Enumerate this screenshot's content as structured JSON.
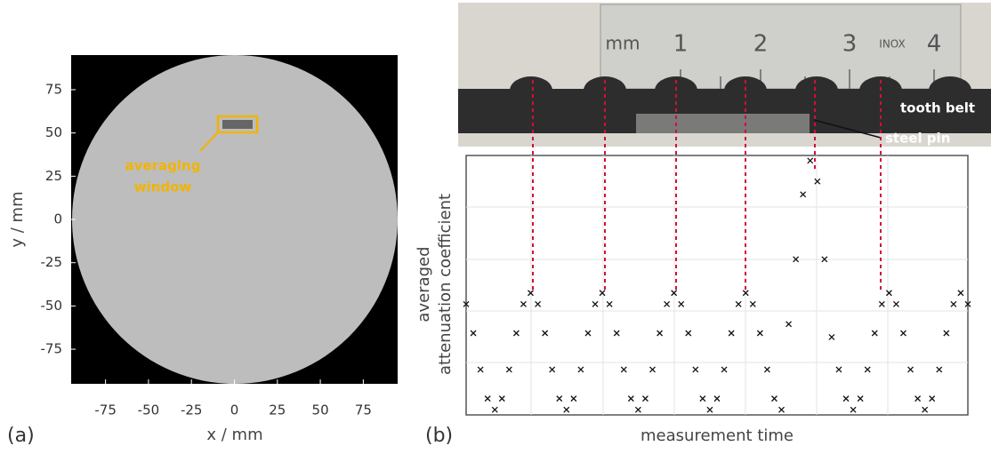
{
  "chart_data": [
    {
      "type": "image",
      "panel_label": "(a)",
      "xlabel": "x / mm",
      "ylabel": "y / mm",
      "xlim": [
        -95,
        95
      ],
      "ylim": [
        -95,
        95
      ],
      "xticks": [
        -75,
        -50,
        -25,
        0,
        25,
        50,
        75
      ],
      "yticks": [
        -75,
        -50,
        -25,
        0,
        25,
        50,
        75
      ],
      "annotation": [
        "averaging",
        "window"
      ]
    },
    {
      "type": "scatter",
      "panel_label": "(b)",
      "xlabel": "measurement time",
      "ylabel": [
        "averaged",
        "attenuation coefficient"
      ],
      "xlim": [
        0,
        7
      ],
      "ylim": [
        0,
        1
      ],
      "color": "#111",
      "x": [
        0,
        0.1,
        0.2,
        0.3,
        0.4,
        0.5,
        0.6,
        0.7,
        0.8,
        0.9,
        1,
        1.1,
        1.2,
        1.3,
        1.4,
        1.5,
        1.6,
        1.7,
        1.8,
        1.9,
        2,
        2.1,
        2.2,
        2.3,
        2.4,
        2.5,
        2.6,
        2.7,
        2.8,
        2.9,
        3,
        3.1,
        3.2,
        3.3,
        3.4,
        3.5,
        3.6,
        3.7,
        3.8,
        3.9,
        4,
        4.1,
        4.2,
        4.3,
        4.4,
        4.5,
        4.6,
        4.7,
        4.8,
        4.9,
        5,
        5.1,
        5.2,
        5.3,
        5.4,
        5.5,
        5.6,
        5.7,
        5.8,
        5.9,
        6,
        6.1,
        6.2,
        6.3,
        6.4,
        6.5,
        6.6,
        6.7,
        6.8,
        6.9,
        7
      ],
      "values": [
        0.427,
        0.315,
        0.175,
        0.063,
        0.02,
        0.063,
        0.175,
        0.315,
        0.427,
        0.47,
        0.427,
        0.315,
        0.175,
        0.063,
        0.02,
        0.063,
        0.175,
        0.315,
        0.427,
        0.47,
        0.427,
        0.315,
        0.175,
        0.063,
        0.02,
        0.063,
        0.175,
        0.315,
        0.427,
        0.47,
        0.427,
        0.315,
        0.175,
        0.063,
        0.02,
        0.063,
        0.175,
        0.315,
        0.427,
        0.47,
        0.427,
        0.315,
        0.175,
        0.063,
        0.02,
        0.35,
        0.6,
        0.85,
        0.98,
        0.9,
        0.6,
        0.3,
        0.175,
        0.063,
        0.02,
        0.063,
        0.175,
        0.315,
        0.427,
        0.47,
        0.427,
        0.315,
        0.175,
        0.063,
        0.02,
        0.063,
        0.175,
        0.315,
        0.427,
        0.47,
        0.427
      ]
    }
  ],
  "photo": {
    "ruler_labels": [
      "mm",
      "1",
      "2",
      "3",
      "INOX",
      "4"
    ],
    "annotations": [
      "tooth belt",
      "steel pin"
    ]
  }
}
